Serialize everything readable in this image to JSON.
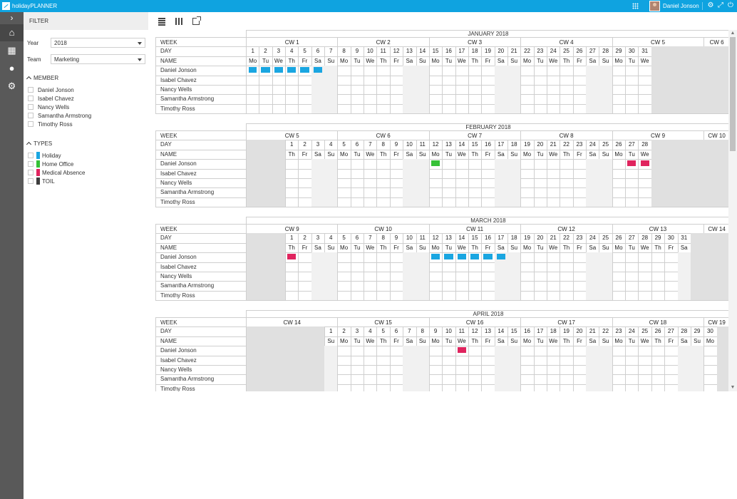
{
  "app": {
    "title": "holidayPLANNER",
    "user_name": "Daniel Jonson"
  },
  "nav": {
    "toggle": "›",
    "items": [
      "home-icon",
      "calendar-icon",
      "user-icon",
      "settings-icon"
    ]
  },
  "filter": {
    "title": "FILTER",
    "year_label": "Year",
    "year_value": "2018",
    "team_label": "Team",
    "team_value": "Marketing",
    "member_title": "MEMBER",
    "members": [
      "Daniel Jonson",
      "Isabel Chavez",
      "Nancy Wells",
      "Samantha Armstrong",
      "Timothy Ross"
    ],
    "types_title": "TYPES",
    "types": [
      {
        "label": "Holiday",
        "color": "#1aa6e1"
      },
      {
        "label": "Home Office",
        "color": "#36c137"
      },
      {
        "label": "Medical Absence",
        "color": "#e0245e"
      },
      {
        "label": "TOIL",
        "color": "#3d3d3d"
      }
    ]
  },
  "labels": {
    "week": "WEEK",
    "day": "DAY",
    "name": "NAME"
  },
  "weekdays": [
    "Mo",
    "Tu",
    "We",
    "Th",
    "Fr",
    "Sa",
    "Su"
  ],
  "colors": {
    "holiday": "#1aa6e1",
    "home_office": "#36c137",
    "medical": "#e0245e",
    "toil": "#3d3d3d"
  },
  "months": [
    {
      "title": "JANUARY 2018",
      "leading_days": 0,
      "num_days": 31,
      "weeks": [
        "CW 1",
        "CW 2",
        "CW 3",
        "CW 4",
        "CW 5",
        "CW 6"
      ],
      "events": [
        {
          "member": 0,
          "day": 1,
          "type": "holiday"
        },
        {
          "member": 0,
          "day": 2,
          "type": "holiday"
        },
        {
          "member": 0,
          "day": 3,
          "type": "holiday"
        },
        {
          "member": 0,
          "day": 4,
          "type": "holiday"
        },
        {
          "member": 0,
          "day": 5,
          "type": "holiday"
        },
        {
          "member": 0,
          "day": 6,
          "type": "holiday"
        }
      ]
    },
    {
      "title": "FEBRUARY 2018",
      "leading_days": 3,
      "num_days": 28,
      "weeks": [
        "CW 5",
        "CW 6",
        "CW 7",
        "CW 8",
        "CW 9",
        "CW 10"
      ],
      "events": [
        {
          "member": 0,
          "day": 12,
          "type": "home_office"
        },
        {
          "member": 0,
          "day": 27,
          "type": "medical"
        },
        {
          "member": 0,
          "day": 28,
          "type": "medical"
        }
      ]
    },
    {
      "title": "MARCH 2018",
      "leading_days": 3,
      "num_days": 31,
      "weeks": [
        "CW 9",
        "CW 10",
        "CW 11",
        "CW 12",
        "CW 13",
        "CW 14"
      ],
      "events": [
        {
          "member": 0,
          "day": 1,
          "type": "medical"
        },
        {
          "member": 0,
          "day": 12,
          "type": "holiday"
        },
        {
          "member": 0,
          "day": 13,
          "type": "holiday"
        },
        {
          "member": 0,
          "day": 14,
          "type": "holiday"
        },
        {
          "member": 0,
          "day": 15,
          "type": "holiday"
        },
        {
          "member": 0,
          "day": 16,
          "type": "holiday"
        },
        {
          "member": 0,
          "day": 17,
          "type": "holiday"
        }
      ]
    },
    {
      "title": "APRIL 2018",
      "leading_days": 6,
      "num_days": 30,
      "weeks": [
        "CW 14",
        "CW 15",
        "CW 16",
        "CW 17",
        "CW 18",
        "CW 19"
      ],
      "events": [
        {
          "member": 0,
          "day": 11,
          "type": "medical"
        }
      ]
    }
  ]
}
